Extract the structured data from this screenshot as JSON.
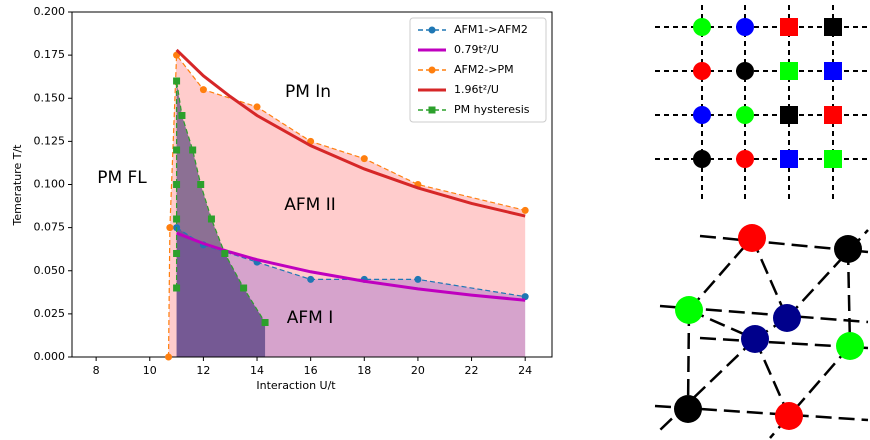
{
  "chart_data": {
    "type": "line",
    "xlabel": "Interaction U/t",
    "ylabel": "Temerature T/t",
    "xlim": [
      7.1,
      25
    ],
    "ylim": [
      0,
      0.2
    ],
    "xticks": [
      8,
      10,
      12,
      14,
      16,
      18,
      20,
      22,
      24
    ],
    "yticks": [
      {
        "value": 0,
        "label": "0.000"
      },
      {
        "value": 0.025,
        "label": "0.025"
      },
      {
        "value": 0.05,
        "label": "0.050"
      },
      {
        "value": 0.075,
        "label": "0.075"
      },
      {
        "value": 0.1,
        "label": "0.100"
      },
      {
        "value": 0.125,
        "label": "0.125"
      },
      {
        "value": 0.15,
        "label": "0.150"
      },
      {
        "value": 0.175,
        "label": "0.175"
      },
      {
        "value": 0.2,
        "label": "0.200"
      }
    ],
    "legend": "upper right",
    "annotations": [
      "PM FL",
      "PM In",
      "AFM II",
      "AFM I"
    ],
    "series": [
      {
        "name": "AFM1->AFM2",
        "color": "#1f77b4",
        "linestyle": "dashed",
        "marker": "circle",
        "fill": "#0000ff",
        "x": [
          11,
          12,
          14,
          16,
          18,
          20,
          24
        ],
        "values": [
          0.075,
          0.065,
          0.055,
          0.045,
          0.045,
          0.045,
          0.035
        ]
      },
      {
        "name": "0.79t²/U",
        "color": "#bf00bf",
        "linestyle": "solid",
        "marker": "none",
        "x": [
          11,
          12,
          13,
          14,
          16,
          18,
          20,
          22,
          24
        ],
        "values": [
          0.0718,
          0.0658,
          0.0608,
          0.0564,
          0.0494,
          0.0439,
          0.0395,
          0.0359,
          0.0329
        ]
      },
      {
        "name": "AFM2->PM",
        "color": "#ff7f0e",
        "linestyle": "dashed",
        "marker": "circle",
        "fill": "#ff0000",
        "x": [
          10.7,
          10.75,
          11,
          12,
          14,
          16,
          18,
          20,
          24
        ],
        "values": [
          0,
          0.075,
          0.175,
          0.155,
          0.145,
          0.125,
          0.115,
          0.1,
          0.085
        ]
      },
      {
        "name": "1.96t²/U",
        "color": "#d62728",
        "linestyle": "solid",
        "marker": "none",
        "x": [
          11,
          12,
          13,
          14,
          16,
          18,
          20,
          22,
          24
        ],
        "values": [
          0.178,
          0.163,
          0.151,
          0.14,
          0.1225,
          0.109,
          0.098,
          0.089,
          0.0817
        ]
      },
      {
        "name": "PM hysteresis",
        "color": "#2ca02c",
        "linestyle": "dashed",
        "marker": "square",
        "fill": "#000050",
        "x": [
          11,
          11,
          11,
          11,
          11,
          11,
          11.2,
          11.6,
          11.9,
          12.3,
          12.8,
          13.5,
          14.3
        ],
        "values": [
          0.04,
          0.06,
          0.08,
          0.1,
          0.12,
          0.16,
          0.14,
          0.12,
          0.1,
          0.08,
          0.06,
          0.04,
          0.02
        ]
      }
    ]
  }
}
